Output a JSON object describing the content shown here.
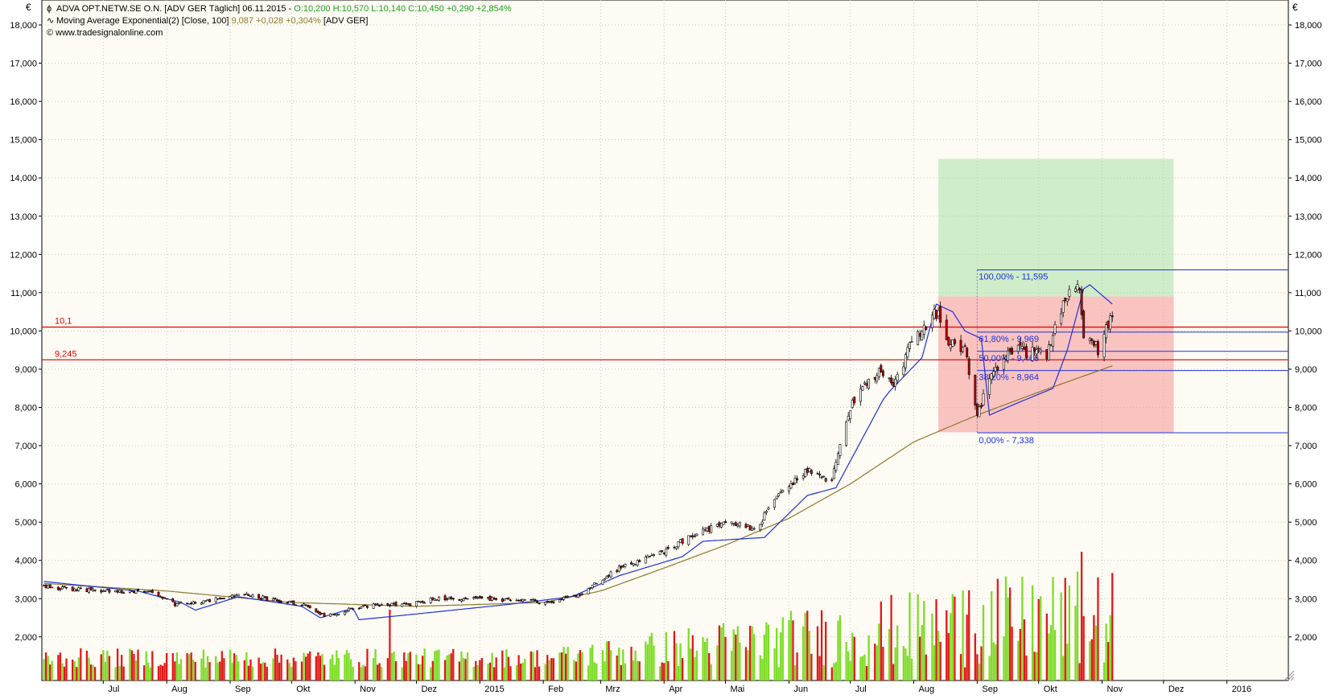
{
  "header": {
    "line1": "ADVA OPT.NETW.SE  O.N. [ADV GER  Täglich] 06.11.2015 - ",
    "line1_ohlc": "O:10,200 H:10,570 L:10,140 C:10,450 +0,290 +2,854%",
    "line2": "Moving Average Exponential(2) [Close, 100] ",
    "line2_value": "9,087 +0,028 +0,304%",
    "line2_tail": " [ADV GER]",
    "line3": "© www.tradesignalonline.com"
  },
  "colors": {
    "background": "#fdfbf3",
    "grid": "#c8c8c8",
    "up_candle": "#ffffff",
    "down_candle": "#c00000",
    "ema2": "#1e32dc",
    "ema100": "#8c7a2c",
    "horizontal_line": "#e00000",
    "fib_line": "#1e32dc",
    "green_zone": "rgba(150,220,150,0.45)",
    "red_zone": "rgba(245,150,150,0.55)",
    "vol_up": "#7ddc28",
    "vol_down": "#e01818",
    "ohlc_text": "#1ea01e",
    "ema_text": "#8c7a2c"
  },
  "chart_data": {
    "type": "candlestick",
    "currency_label": "€",
    "ylim": [
      1800,
      18500
    ],
    "y_ticks": [
      "18,000",
      "17,000",
      "16,000",
      "15,000",
      "14,000",
      "13,000",
      "12,000",
      "11,000",
      "10,000",
      "9,000",
      "8,000",
      "7,000",
      "6,000",
      "5,000",
      "4,000",
      "3,000",
      "2,000"
    ],
    "y_tick_values": [
      18000,
      17000,
      16000,
      15000,
      14000,
      13000,
      12000,
      11000,
      10000,
      9000,
      8000,
      7000,
      6000,
      5000,
      4000,
      3000,
      2000
    ],
    "x_range": [
      "2014-06-01",
      "2016-01-31"
    ],
    "x_ticks": [
      {
        "label": "Jul",
        "date": "2014-07-01"
      },
      {
        "label": "Aug",
        "date": "2014-08-01"
      },
      {
        "label": "Sep",
        "date": "2014-09-01"
      },
      {
        "label": "Okt",
        "date": "2014-10-01"
      },
      {
        "label": "Nov",
        "date": "2014-11-01"
      },
      {
        "label": "Dez",
        "date": "2014-12-01"
      },
      {
        "label": "2015",
        "date": "2015-01-01"
      },
      {
        "label": "Feb",
        "date": "2015-02-01"
      },
      {
        "label": "Mrz",
        "date": "2015-03-01"
      },
      {
        "label": "Apr",
        "date": "2015-04-01"
      },
      {
        "label": "Mai",
        "date": "2015-05-01"
      },
      {
        "label": "Jun",
        "date": "2015-06-01"
      },
      {
        "label": "Jul",
        "date": "2015-07-01"
      },
      {
        "label": "Aug",
        "date": "2015-08-01"
      },
      {
        "label": "Sep",
        "date": "2015-09-01"
      },
      {
        "label": "Okt",
        "date": "2015-10-01"
      },
      {
        "label": "Nov",
        "date": "2015-11-01"
      },
      {
        "label": "Dez",
        "date": "2015-12-01"
      },
      {
        "label": "2016",
        "date": "2016-01-01"
      }
    ],
    "price_anchors": [
      [
        "2014-06-02",
        3300
      ],
      [
        "2014-07-01",
        3200
      ],
      [
        "2014-07-25",
        3150
      ],
      [
        "2014-08-05",
        2850
      ],
      [
        "2014-08-20",
        2950
      ],
      [
        "2014-09-08",
        3100
      ],
      [
        "2014-09-25",
        2950
      ],
      [
        "2014-10-10",
        2800
      ],
      [
        "2014-10-17",
        2550
      ],
      [
        "2014-10-28",
        2700
      ],
      [
        "2014-11-10",
        2850
      ],
      [
        "2014-11-28",
        2850
      ],
      [
        "2014-12-10",
        3000
      ],
      [
        "2014-12-30",
        3000
      ],
      [
        "2015-01-20",
        2950
      ],
      [
        "2015-02-05",
        2900
      ],
      [
        "2015-02-20",
        3150
      ],
      [
        "2015-03-10",
        3800
      ],
      [
        "2015-03-31",
        4200
      ],
      [
        "2015-04-20",
        4800
      ],
      [
        "2015-05-05",
        5000
      ],
      [
        "2015-05-15",
        4800
      ],
      [
        "2015-05-29",
        5800
      ],
      [
        "2015-06-10",
        6400
      ],
      [
        "2015-06-22",
        6100
      ],
      [
        "2015-07-01",
        8000
      ],
      [
        "2015-07-15",
        9000
      ],
      [
        "2015-07-22",
        8500
      ],
      [
        "2015-07-29",
        9500
      ],
      [
        "2015-08-06",
        10000
      ],
      [
        "2015-08-12",
        10500
      ],
      [
        "2015-08-18",
        9700
      ],
      [
        "2015-08-26",
        9600
      ],
      [
        "2015-09-01",
        7800
      ],
      [
        "2015-09-08",
        9000
      ],
      [
        "2015-09-20",
        9500
      ],
      [
        "2015-10-05",
        9400
      ],
      [
        "2015-10-12",
        10600
      ],
      [
        "2015-10-20",
        11400
      ],
      [
        "2015-10-23",
        9900
      ],
      [
        "2015-10-30",
        9500
      ],
      [
        "2015-11-06",
        10450
      ]
    ],
    "ema2_anchors": [
      [
        "2014-06-02",
        3450
      ],
      [
        "2014-06-20",
        3350
      ],
      [
        "2014-07-18",
        3200
      ],
      [
        "2014-08-08",
        2900
      ],
      [
        "2014-08-15",
        2700
      ],
      [
        "2014-09-05",
        3050
      ],
      [
        "2014-10-06",
        2800
      ],
      [
        "2014-10-15",
        2500
      ],
      [
        "2014-10-31",
        2750
      ],
      [
        "2014-11-03",
        2450
      ],
      [
        "2014-12-01",
        2600
      ],
      [
        "2015-01-15",
        2850
      ],
      [
        "2015-02-15",
        3050
      ],
      [
        "2015-03-10",
        3600
      ],
      [
        "2015-04-10",
        4100
      ],
      [
        "2015-04-20",
        4500
      ],
      [
        "2015-05-20",
        4600
      ],
      [
        "2015-06-10",
        5700
      ],
      [
        "2015-06-24",
        5900
      ],
      [
        "2015-07-05",
        7000
      ],
      [
        "2015-07-18",
        8300
      ],
      [
        "2015-08-05",
        9300
      ],
      [
        "2015-08-12",
        10700
      ],
      [
        "2015-08-20",
        10500
      ],
      [
        "2015-08-26",
        10000
      ],
      [
        "2015-09-03",
        9800
      ],
      [
        "2015-09-07",
        7800
      ],
      [
        "2015-09-20",
        8100
      ],
      [
        "2015-10-08",
        8500
      ],
      [
        "2015-10-15",
        9500
      ],
      [
        "2015-10-24",
        11300
      ],
      [
        "2015-11-06",
        10700
      ]
    ],
    "ema100_anchors": [
      [
        "2014-06-02",
        3400
      ],
      [
        "2014-08-01",
        3200
      ],
      [
        "2014-10-01",
        2900
      ],
      [
        "2014-12-01",
        2800
      ],
      [
        "2015-02-01",
        2900
      ],
      [
        "2015-03-01",
        3200
      ],
      [
        "2015-04-01",
        3800
      ],
      [
        "2015-05-01",
        4400
      ],
      [
        "2015-06-01",
        5100
      ],
      [
        "2015-07-01",
        6000
      ],
      [
        "2015-08-01",
        7100
      ],
      [
        "2015-09-01",
        7800
      ],
      [
        "2015-10-01",
        8400
      ],
      [
        "2015-11-06",
        9087
      ]
    ],
    "horizontal_lines": [
      {
        "label": "10,1",
        "value": 10.1,
        "price": 10100
      },
      {
        "label": "9,245",
        "value": 9.245,
        "price": 9245
      }
    ],
    "zones": [
      {
        "kind": "target",
        "from_date": "2015-08-13",
        "to_date": "2015-12-06",
        "low": 10900,
        "high": 14500
      },
      {
        "kind": "risk",
        "from_date": "2015-08-13",
        "to_date": "2015-12-06",
        "low": 7350,
        "high": 10900
      }
    ],
    "fibonacci": {
      "start_date": "2015-09-01",
      "levels": [
        {
          "pct": "100,00%",
          "value": "11,595",
          "price": 11595
        },
        {
          "pct": "61,80%",
          "value": "9,969",
          "price": 9969
        },
        {
          "pct": "50,00%",
          "value": "9,466",
          "price": 9466
        },
        {
          "pct": "38,20%",
          "value": "8,964",
          "price": 8964
        },
        {
          "pct": "0,00%",
          "value": "7,338",
          "price": 7338
        }
      ]
    },
    "volume_spikes": [
      [
        "2014-11-18",
        0.55
      ],
      [
        "2015-08-25",
        0.7
      ],
      [
        "2015-08-28",
        0.7
      ],
      [
        "2015-10-22",
        1.0
      ],
      [
        "2015-10-23",
        0.5
      ],
      [
        "2015-07-20",
        0.4
      ],
      [
        "2015-06-29",
        0.3
      ],
      [
        "2015-07-10",
        0.35
      ],
      [
        "2015-09-10",
        0.28
      ]
    ]
  }
}
